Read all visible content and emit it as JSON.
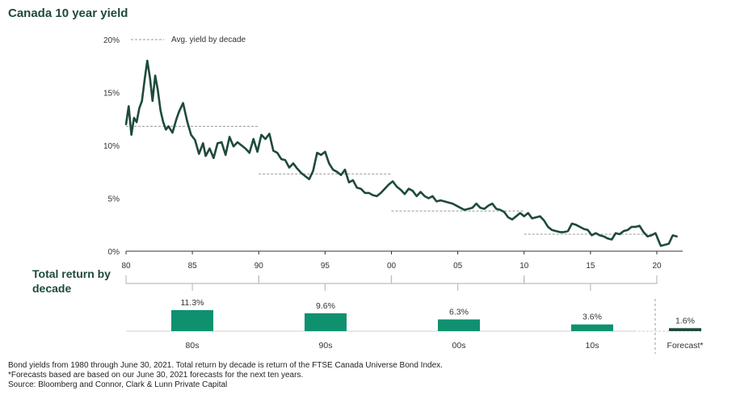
{
  "title": "Canada 10 year yield",
  "subtitle": "Total return by decade",
  "legend_label": "Avg. yield by decade",
  "footnotes": [
    "Bond yields from 1980 through June 30, 2021. Total return by decade is return of the FTSE Canada Universe Bond Index.",
    "*Forecasts based are based on our June 30, 2021 forecasts for the next ten years.",
    "Source: Bloomberg and Connor, Clark & Lunn Private Capital"
  ],
  "colors": {
    "line": "#1e4a3a",
    "bar": "#0f9170",
    "forecast_bar": "#1e4a3a",
    "dash": "#9a9a9a",
    "axis": "#333333"
  },
  "chart_data": [
    {
      "type": "line",
      "title": "Canada 10 year yield",
      "y_ticks": [
        "0%",
        "5%",
        "10%",
        "15%",
        "20%"
      ],
      "y_tick_values": [
        0,
        5,
        10,
        15,
        20
      ],
      "x_ticks": [
        "80",
        "85",
        "90",
        "95",
        "00",
        "05",
        "10",
        "15",
        "20"
      ],
      "x_tick_values": [
        1980,
        1985,
        1990,
        1995,
        2000,
        2005,
        2010,
        2015,
        2020
      ],
      "xlim": [
        1980,
        2021.5
      ],
      "ylim": [
        0,
        20
      ],
      "series": [
        {
          "name": "",
          "x": [
            1980.0,
            1980.2,
            1980.4,
            1980.6,
            1980.8,
            1981.0,
            1981.2,
            1981.4,
            1981.6,
            1981.8,
            1982.0,
            1982.2,
            1982.4,
            1982.6,
            1982.8,
            1983.0,
            1983.2,
            1983.5,
            1983.8,
            1984.0,
            1984.3,
            1984.6,
            1984.9,
            1985.2,
            1985.5,
            1985.8,
            1986.0,
            1986.3,
            1986.6,
            1986.9,
            1987.2,
            1987.5,
            1987.8,
            1988.1,
            1988.4,
            1988.7,
            1989.0,
            1989.3,
            1989.6,
            1989.9,
            1990.2,
            1990.5,
            1990.8,
            1991.1,
            1991.4,
            1991.7,
            1992.0,
            1992.3,
            1992.6,
            1992.9,
            1993.2,
            1993.5,
            1993.8,
            1994.1,
            1994.4,
            1994.7,
            1995.0,
            1995.3,
            1995.6,
            1995.9,
            1996.2,
            1996.5,
            1996.8,
            1997.1,
            1997.4,
            1997.7,
            1998.0,
            1998.3,
            1998.6,
            1998.9,
            1999.2,
            1999.5,
            1999.8,
            2000.1,
            2000.4,
            2000.7,
            2001.0,
            2001.3,
            2001.6,
            2001.9,
            2002.2,
            2002.5,
            2002.8,
            2003.1,
            2003.4,
            2003.7,
            2004.0,
            2004.3,
            2004.6,
            2004.9,
            2005.2,
            2005.5,
            2005.8,
            2006.1,
            2006.4,
            2006.7,
            2007.0,
            2007.3,
            2007.6,
            2007.9,
            2008.2,
            2008.5,
            2008.8,
            2009.1,
            2009.4,
            2009.7,
            2010.0,
            2010.3,
            2010.6,
            2010.9,
            2011.2,
            2011.5,
            2011.8,
            2012.1,
            2012.4,
            2012.7,
            2013.0,
            2013.3,
            2013.6,
            2013.9,
            2014.2,
            2014.5,
            2014.8,
            2015.1,
            2015.4,
            2015.7,
            2016.0,
            2016.3,
            2016.6,
            2016.9,
            2017.2,
            2017.5,
            2017.8,
            2018.1,
            2018.4,
            2018.7,
            2019.0,
            2019.3,
            2019.6,
            2019.9,
            2020.1,
            2020.3,
            2020.6,
            2020.9,
            2021.2,
            2021.5
          ],
          "values": [
            12.0,
            13.7,
            11.0,
            12.6,
            12.2,
            13.5,
            14.2,
            16.2,
            18.0,
            16.4,
            14.2,
            16.6,
            15.2,
            13.3,
            12.2,
            11.5,
            11.8,
            11.2,
            12.5,
            13.2,
            14.0,
            12.3,
            11.0,
            10.5,
            9.2,
            10.2,
            9.0,
            9.7,
            8.8,
            10.2,
            10.3,
            9.1,
            10.8,
            9.9,
            10.3,
            10.0,
            9.7,
            9.3,
            10.6,
            9.4,
            11.0,
            10.6,
            11.1,
            9.5,
            9.3,
            8.7,
            8.6,
            7.9,
            8.3,
            7.8,
            7.4,
            7.1,
            6.8,
            7.6,
            9.3,
            9.1,
            9.4,
            8.3,
            7.7,
            7.5,
            7.2,
            7.7,
            6.5,
            6.7,
            6.0,
            5.9,
            5.5,
            5.5,
            5.3,
            5.2,
            5.5,
            5.9,
            6.3,
            6.6,
            6.1,
            5.8,
            5.4,
            5.9,
            5.7,
            5.2,
            5.6,
            5.2,
            5.0,
            5.2,
            4.7,
            4.8,
            4.7,
            4.6,
            4.5,
            4.3,
            4.1,
            3.9,
            4.0,
            4.1,
            4.5,
            4.1,
            4.0,
            4.3,
            4.5,
            4.0,
            3.9,
            3.7,
            3.2,
            3.0,
            3.3,
            3.6,
            3.3,
            3.6,
            3.1,
            3.2,
            3.3,
            2.9,
            2.3,
            2.0,
            1.9,
            1.8,
            1.8,
            1.9,
            2.6,
            2.5,
            2.3,
            2.1,
            2.0,
            1.5,
            1.7,
            1.5,
            1.4,
            1.2,
            1.1,
            1.7,
            1.6,
            1.9,
            2.0,
            2.3,
            2.3,
            2.4,
            1.8,
            1.4,
            1.5,
            1.7,
            1.1,
            0.5,
            0.6,
            0.7,
            1.5,
            1.4
          ]
        }
      ],
      "decade_averages": [
        {
          "decade": "80s",
          "from": 1980,
          "to": 1990,
          "value": 11.8
        },
        {
          "decade": "90s",
          "from": 1990,
          "to": 2000,
          "value": 7.3
        },
        {
          "decade": "00s",
          "from": 2000,
          "to": 2010,
          "value": 3.8
        },
        {
          "decade": "10s",
          "from": 2010,
          "to": 2020,
          "value": 1.6
        }
      ]
    },
    {
      "type": "bar",
      "title": "Total return by decade",
      "categories": [
        "80s",
        "90s",
        "00s",
        "10s",
        "Forecast*"
      ],
      "values": [
        11.3,
        9.6,
        6.3,
        3.6,
        1.6
      ],
      "value_labels": [
        "11.3%",
        "9.6%",
        "6.3%",
        "3.6%",
        "1.6%"
      ]
    }
  ]
}
